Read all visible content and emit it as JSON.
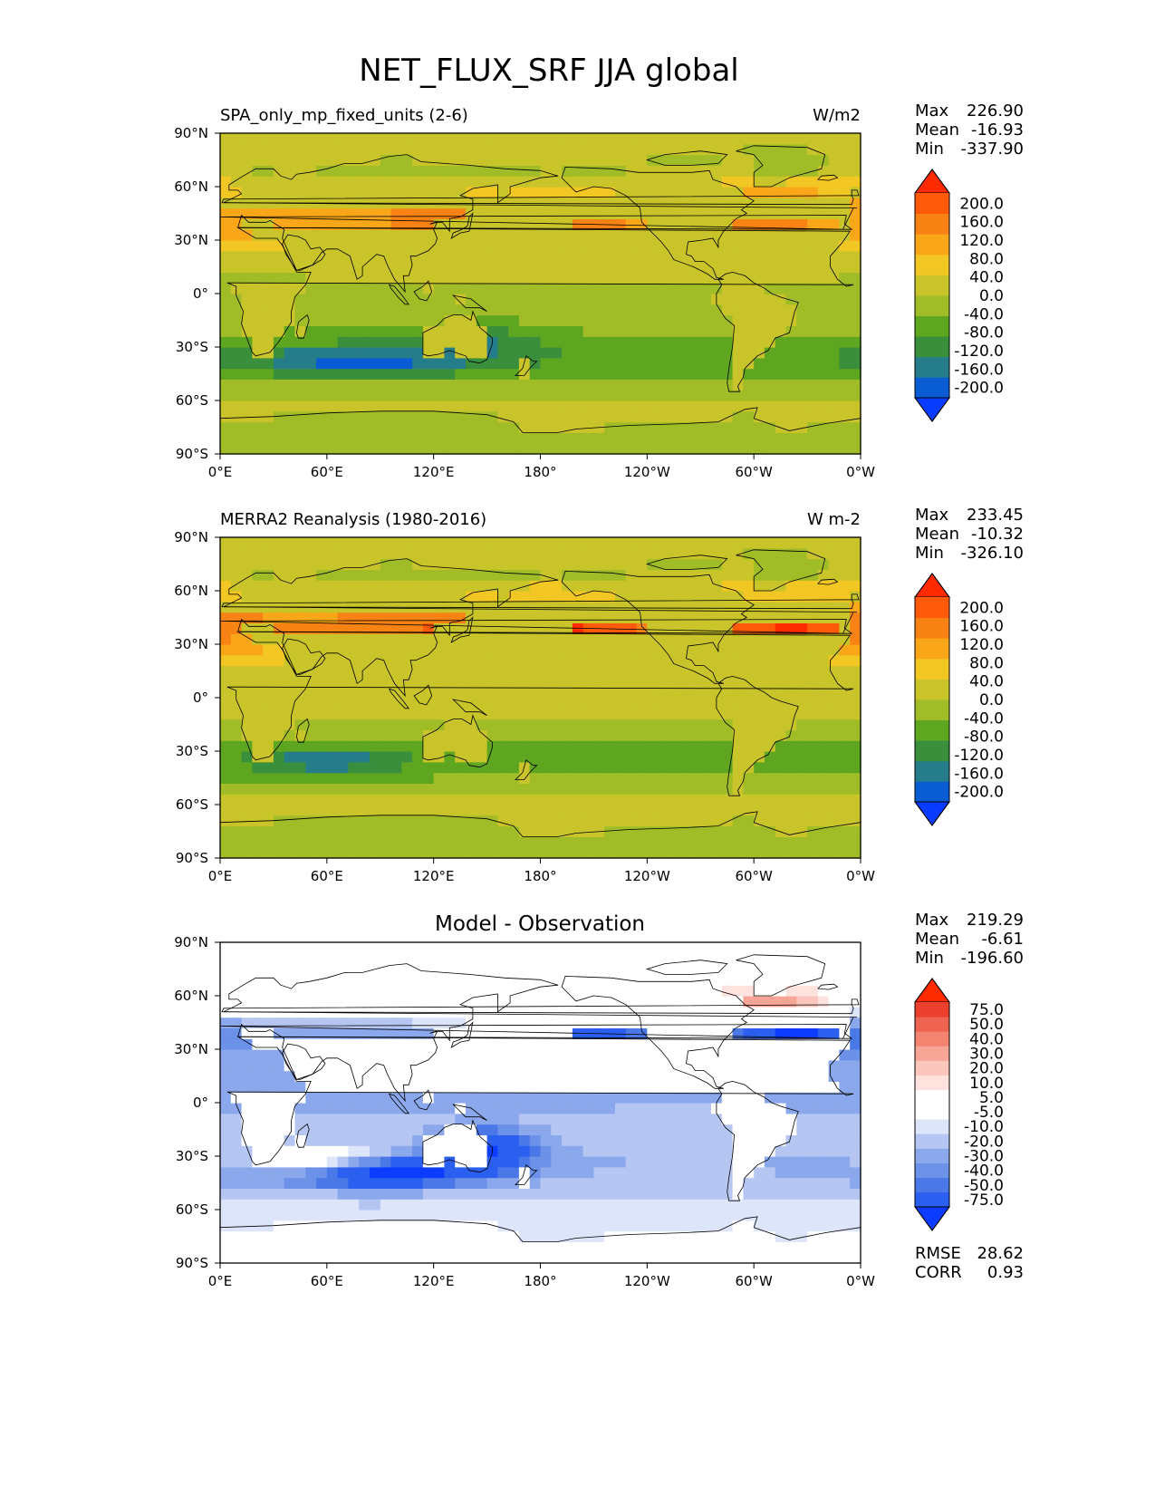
{
  "title": "NET_FLUX_SRF JJA global",
  "colors": {
    "abs_levels": [
      "#0a3cff",
      "#0a5cd4",
      "#267d8a",
      "#3a8f3c",
      "#5ea620",
      "#a0bc26",
      "#c8c42a",
      "#f2c623",
      "#f9a718",
      "#f88214",
      "#ff5a0a",
      "#ff2a00"
    ],
    "diff_levels": [
      "#0b3cff",
      "#2b5ff0",
      "#4a78e6",
      "#6b91e8",
      "#8ca8ec",
      "#b6c6f2",
      "#dde5fa",
      "#ffffff",
      "#ffffff",
      "#fde2de",
      "#fbc6bc",
      "#f7a596",
      "#f28470",
      "#ef6450",
      "#ea402d",
      "#ff2a00"
    ],
    "coast": "#000000"
  },
  "chart_data": [
    {
      "type": "heatmap",
      "panel": "model",
      "left_title": "SPA_only_mp_fixed_units (2-6)",
      "right_title": "W/m2",
      "x_ticks": [
        "0°E",
        "60°E",
        "120°E",
        "180°",
        "120°W",
        "60°W",
        "0°W"
      ],
      "y_ticks": [
        "90°N",
        "60°N",
        "30°N",
        "0°",
        "30°S",
        "60°S",
        "90°S"
      ],
      "stats": [
        [
          "Max",
          "226.90"
        ],
        [
          "Mean",
          "-16.93"
        ],
        [
          "Min",
          "-337.90"
        ]
      ],
      "colorbar": {
        "levels": [
          "200.0",
          "160.0",
          "120.0",
          "80.0",
          "40.0",
          "0.0",
          "-40.0",
          "-80.0",
          "-120.0",
          "-160.0",
          "-200.0"
        ],
        "extend": "both"
      },
      "lon_range": [
        0,
        360
      ],
      "lat_range": [
        -90,
        90
      ]
    },
    {
      "type": "heatmap",
      "panel": "observation",
      "left_title": "MERRA2 Reanalysis (1980-2016)",
      "right_title": "W m-2",
      "x_ticks": [
        "0°E",
        "60°E",
        "120°E",
        "180°",
        "120°W",
        "60°W",
        "0°W"
      ],
      "y_ticks": [
        "90°N",
        "60°N",
        "30°N",
        "0°",
        "30°S",
        "60°S",
        "90°S"
      ],
      "stats": [
        [
          "Max",
          "233.45"
        ],
        [
          "Mean",
          "-10.32"
        ],
        [
          "Min",
          "-326.10"
        ]
      ],
      "colorbar": {
        "levels": [
          "200.0",
          "160.0",
          "120.0",
          "80.0",
          "40.0",
          "0.0",
          "-40.0",
          "-80.0",
          "-120.0",
          "-160.0",
          "-200.0"
        ],
        "extend": "both"
      },
      "lon_range": [
        0,
        360
      ],
      "lat_range": [
        -90,
        90
      ]
    },
    {
      "type": "heatmap",
      "panel": "difference",
      "center_title": "Model - Observation",
      "x_ticks": [
        "0°E",
        "60°E",
        "120°E",
        "180°",
        "120°W",
        "60°W",
        "0°W"
      ],
      "y_ticks": [
        "90°N",
        "60°N",
        "30°N",
        "0°",
        "30°S",
        "60°S",
        "90°S"
      ],
      "stats": [
        [
          "Max",
          "219.29"
        ],
        [
          "Mean",
          "-6.61"
        ],
        [
          "Min",
          "-196.60"
        ]
      ],
      "extra_stats": [
        [
          "RMSE",
          "28.62"
        ],
        [
          "CORR",
          "0.93"
        ]
      ],
      "colorbar": {
        "levels": [
          "75.0",
          "50.0",
          "40.0",
          "30.0",
          "20.0",
          "10.0",
          "5.0",
          "-5.0",
          "-10.0",
          "-20.0",
          "-30.0",
          "-40.0",
          "-50.0",
          "-75.0"
        ],
        "extend": "both"
      },
      "lon_range": [
        0,
        360
      ],
      "lat_range": [
        -90,
        90
      ]
    }
  ]
}
